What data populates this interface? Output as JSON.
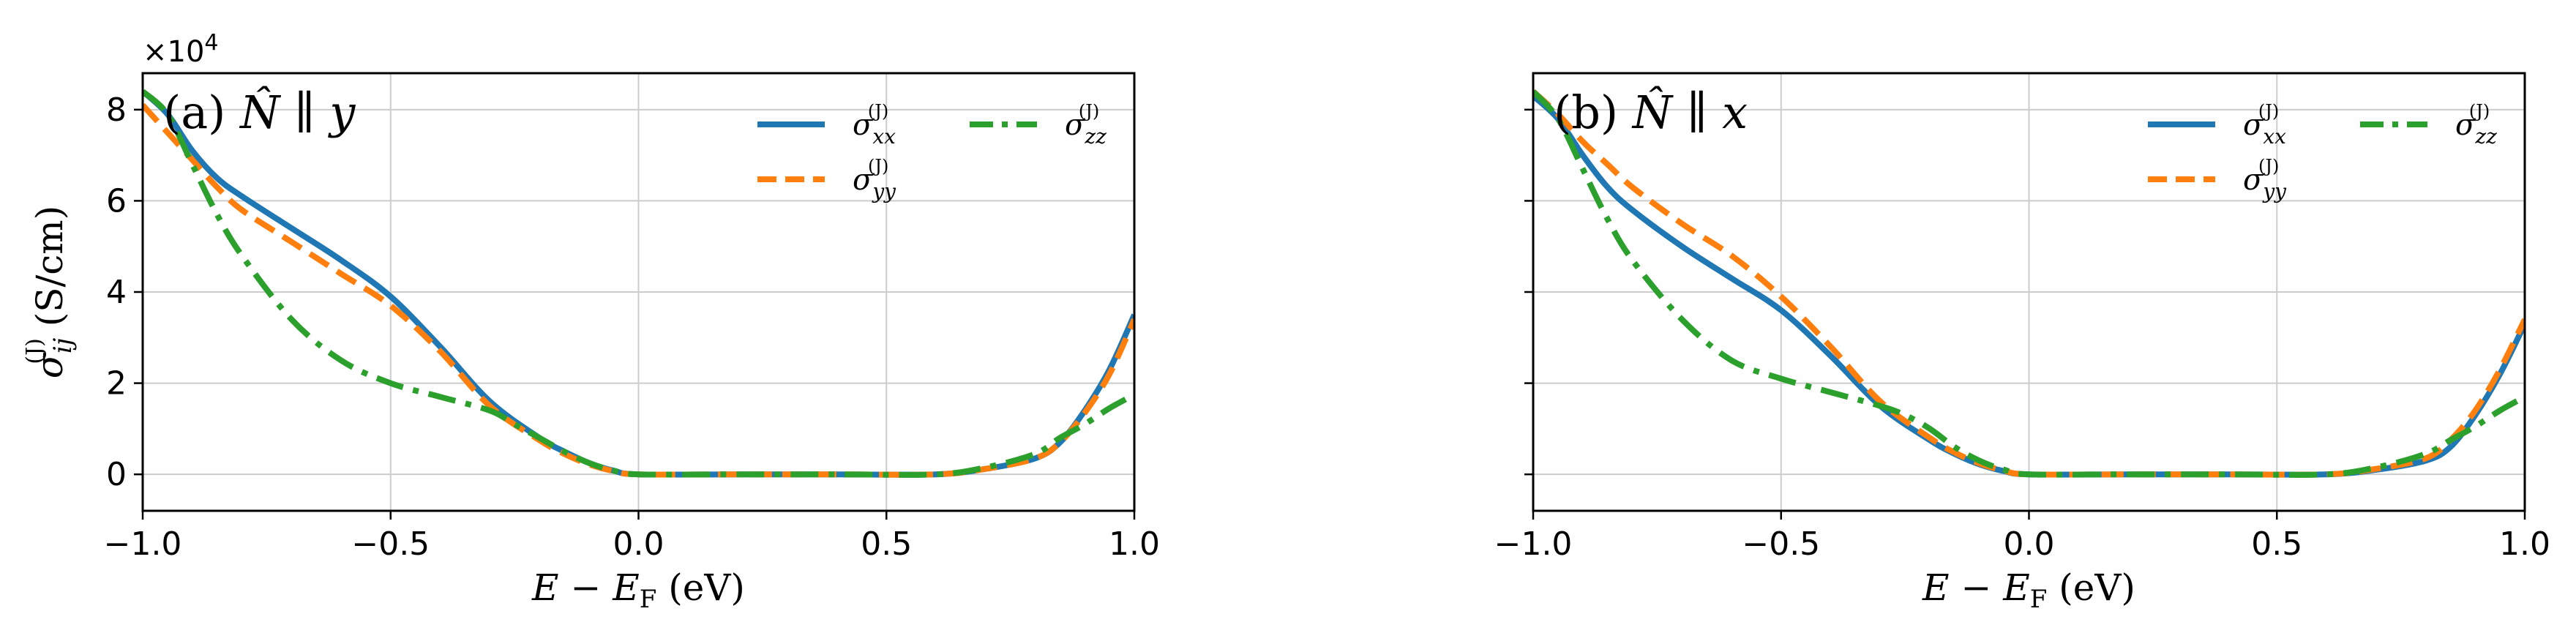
{
  "figure": {
    "exponent_label": "×10",
    "exponent_power": "4",
    "colors": {
      "xx": "#1f77b4",
      "yy": "#ff7f0e",
      "zz": "#2ca02c",
      "grid": "#cccccc"
    }
  },
  "chart_data": [
    {
      "type": "line",
      "panel_label": "(a) N̂ ∥ y",
      "xlabel": "E − E_F (eV)",
      "ylabel": "σ_ij^(J) (S/cm)",
      "xlim": [
        -1.0,
        1.0
      ],
      "ylim": [
        -0.8,
        8.8
      ],
      "y_scale_factor": "×10^4",
      "x_ticks": [
        "−1.0",
        "−0.5",
        "0.0",
        "0.5",
        "1.0"
      ],
      "y_ticks": [
        "0",
        "2",
        "4",
        "6",
        "8"
      ],
      "grid": true,
      "legend_position": "top-right",
      "series": [
        {
          "name": "σ_xx^(J)",
          "style": "solid",
          "color": "#1f77b4",
          "x": [
            -1.0,
            -0.95,
            -0.9,
            -0.85,
            -0.8,
            -0.7,
            -0.6,
            -0.5,
            -0.4,
            -0.3,
            -0.2,
            -0.15,
            -0.1,
            -0.05,
            0.0,
            0.2,
            0.4,
            0.6,
            0.7,
            0.8,
            0.85,
            0.9,
            0.95,
            1.0
          ],
          "y": [
            8.4,
            7.9,
            7.1,
            6.5,
            6.1,
            5.4,
            4.7,
            3.9,
            2.8,
            1.6,
            0.8,
            0.5,
            0.25,
            0.08,
            0.0,
            0.0,
            0.0,
            0.0,
            0.12,
            0.35,
            0.7,
            1.4,
            2.3,
            3.5
          ]
        },
        {
          "name": "σ_yy^(J)",
          "style": "dashed",
          "color": "#ff7f0e",
          "x": [
            -1.0,
            -0.95,
            -0.9,
            -0.85,
            -0.8,
            -0.7,
            -0.6,
            -0.5,
            -0.4,
            -0.3,
            -0.2,
            -0.15,
            -0.1,
            -0.05,
            0.0,
            0.2,
            0.4,
            0.6,
            0.7,
            0.8,
            0.85,
            0.9,
            0.95,
            1.0
          ],
          "y": [
            8.1,
            7.5,
            6.9,
            6.3,
            5.8,
            5.1,
            4.4,
            3.7,
            2.7,
            1.5,
            0.75,
            0.45,
            0.22,
            0.07,
            0.0,
            0.0,
            0.0,
            0.0,
            0.12,
            0.35,
            0.7,
            1.35,
            2.2,
            3.4
          ]
        },
        {
          "name": "σ_zz^(J)",
          "style": "dashdot",
          "color": "#2ca02c",
          "x": [
            -1.0,
            -0.95,
            -0.9,
            -0.85,
            -0.8,
            -0.7,
            -0.6,
            -0.5,
            -0.4,
            -0.3,
            -0.25,
            -0.2,
            -0.15,
            -0.1,
            -0.05,
            0.0,
            0.2,
            0.4,
            0.6,
            0.7,
            0.8,
            0.85,
            0.9,
            0.95,
            1.0
          ],
          "y": [
            8.4,
            7.9,
            6.8,
            5.7,
            4.8,
            3.4,
            2.5,
            2.0,
            1.7,
            1.4,
            1.1,
            0.8,
            0.5,
            0.25,
            0.08,
            0.0,
            0.0,
            0.0,
            0.0,
            0.15,
            0.45,
            0.8,
            1.1,
            1.45,
            1.75
          ]
        }
      ]
    },
    {
      "type": "line",
      "panel_label": "(b) N̂ ∥ x",
      "xlabel": "E − E_F (eV)",
      "ylabel": "",
      "xlim": [
        -1.0,
        1.0
      ],
      "ylim": [
        -0.8,
        8.8
      ],
      "x_ticks": [
        "−1.0",
        "−0.5",
        "0.0",
        "0.5",
        "1.0"
      ],
      "y_ticks": [],
      "grid": true,
      "legend_position": "top-right",
      "series": [
        {
          "name": "σ_xx^(J)",
          "style": "solid",
          "color": "#1f77b4",
          "x": [
            -1.0,
            -0.95,
            -0.9,
            -0.85,
            -0.8,
            -0.7,
            -0.6,
            -0.5,
            -0.4,
            -0.3,
            -0.2,
            -0.15,
            -0.1,
            -0.05,
            0.0,
            0.2,
            0.4,
            0.6,
            0.7,
            0.8,
            0.85,
            0.9,
            0.95,
            1.0
          ],
          "y": [
            8.3,
            7.8,
            7.0,
            6.3,
            5.8,
            5.0,
            4.3,
            3.6,
            2.6,
            1.5,
            0.75,
            0.45,
            0.22,
            0.07,
            0.0,
            0.0,
            0.0,
            0.0,
            0.1,
            0.3,
            0.6,
            1.3,
            2.2,
            3.3
          ]
        },
        {
          "name": "σ_yy^(J)",
          "style": "dashed",
          "color": "#ff7f0e",
          "x": [
            -1.0,
            -0.95,
            -0.9,
            -0.85,
            -0.8,
            -0.7,
            -0.6,
            -0.5,
            -0.4,
            -0.3,
            -0.2,
            -0.15,
            -0.1,
            -0.05,
            0.0,
            0.2,
            0.4,
            0.6,
            0.7,
            0.8,
            0.85,
            0.9,
            0.95,
            1.0
          ],
          "y": [
            8.4,
            7.9,
            7.3,
            6.8,
            6.3,
            5.5,
            4.8,
            3.9,
            2.8,
            1.6,
            0.8,
            0.48,
            0.24,
            0.08,
            0.0,
            0.0,
            0.0,
            0.0,
            0.12,
            0.35,
            0.75,
            1.4,
            2.3,
            3.4
          ]
        },
        {
          "name": "σ_zz^(J)",
          "style": "dashdot",
          "color": "#2ca02c",
          "x": [
            -1.0,
            -0.95,
            -0.9,
            -0.85,
            -0.8,
            -0.7,
            -0.6,
            -0.5,
            -0.4,
            -0.3,
            -0.25,
            -0.2,
            -0.15,
            -0.1,
            -0.05,
            0.0,
            0.2,
            0.4,
            0.6,
            0.7,
            0.8,
            0.85,
            0.9,
            0.95,
            1.0
          ],
          "y": [
            8.4,
            7.8,
            6.7,
            5.6,
            4.7,
            3.4,
            2.5,
            2.1,
            1.8,
            1.5,
            1.3,
            1.0,
            0.6,
            0.3,
            0.1,
            0.0,
            0.0,
            0.0,
            0.0,
            0.15,
            0.45,
            0.75,
            1.05,
            1.4,
            1.7
          ]
        }
      ]
    }
  ]
}
